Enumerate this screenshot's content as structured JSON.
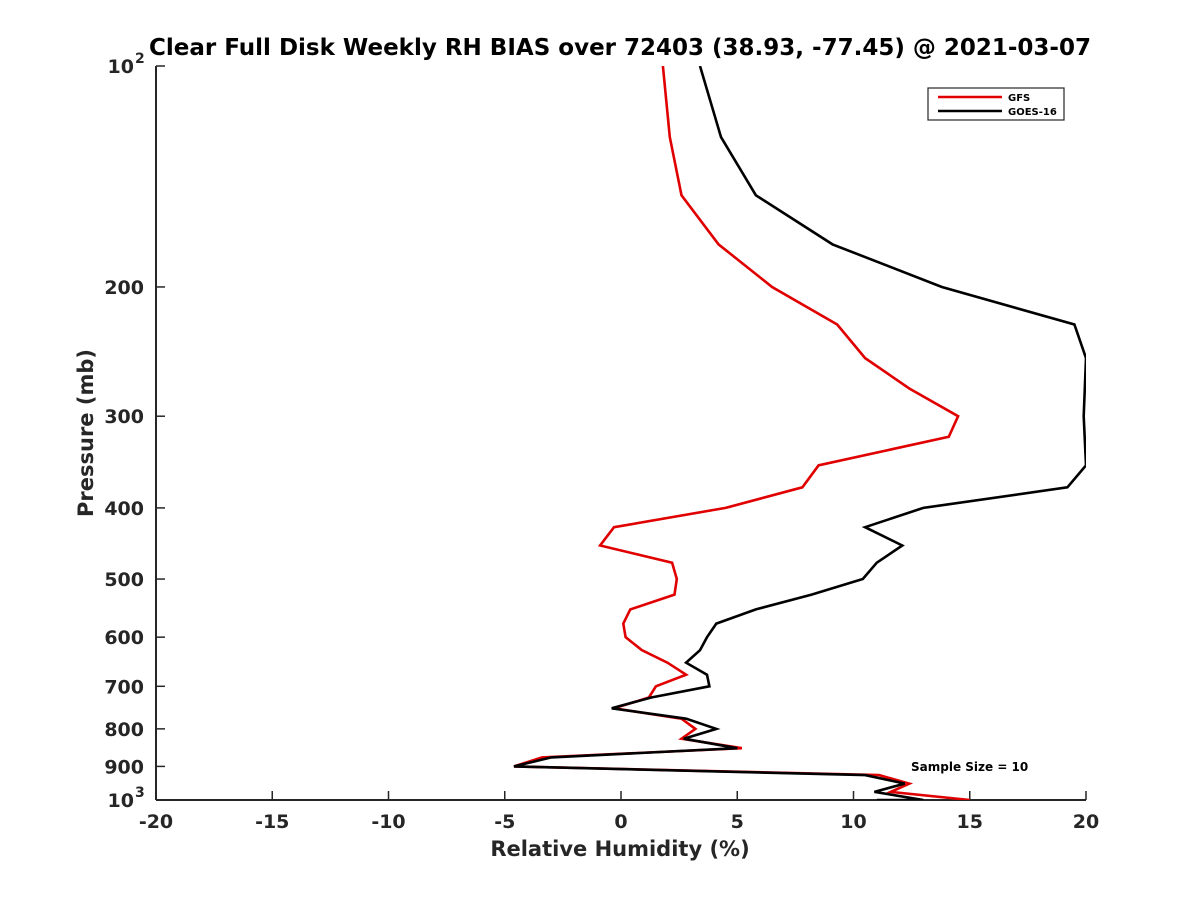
{
  "chart_data": {
    "type": "line",
    "title": "Clear Full Disk Weekly RH BIAS over 72403 (38.93, -77.45) @ 2021-03-07",
    "xlabel": "Relative Humidity (%)",
    "ylabel": "Pressure (mb)",
    "xlim": [
      -20,
      20
    ],
    "ylim": [
      100,
      1000
    ],
    "y_scale": "log",
    "y_reversed": true,
    "x_ticks": [
      "-20",
      "-15",
      "-10",
      "-5",
      "0",
      "5",
      "10",
      "15",
      "20"
    ],
    "y_ticks": [
      {
        "value": 100,
        "base": "10",
        "exp": "2",
        "label": ""
      },
      {
        "value": 200,
        "label": "200"
      },
      {
        "value": 300,
        "label": "300"
      },
      {
        "value": 400,
        "label": "400"
      },
      {
        "value": 500,
        "label": "500"
      },
      {
        "value": 600,
        "label": "600"
      },
      {
        "value": 700,
        "label": "700"
      },
      {
        "value": 800,
        "label": "800"
      },
      {
        "value": 900,
        "label": "900"
      },
      {
        "value": 1000,
        "base": "10",
        "exp": "3",
        "label": ""
      }
    ],
    "grid": false,
    "legend_position": "top-right",
    "annotation": "Sample Size = 10",
    "series": [
      {
        "name": "GFS",
        "color": "#e00000",
        "points": [
          [
            1.8,
            100
          ],
          [
            2.1,
            125
          ],
          [
            2.6,
            150
          ],
          [
            4.2,
            175
          ],
          [
            6.5,
            200
          ],
          [
            9.3,
            225
          ],
          [
            10.5,
            250
          ],
          [
            12.4,
            275
          ],
          [
            14.5,
            300
          ],
          [
            14.1,
            320
          ],
          [
            8.5,
            350
          ],
          [
            7.8,
            375
          ],
          [
            4.5,
            400
          ],
          [
            -0.3,
            425
          ],
          [
            -0.9,
            450
          ],
          [
            2.2,
            475
          ],
          [
            2.4,
            500
          ],
          [
            2.3,
            525
          ],
          [
            0.4,
            550
          ],
          [
            0.1,
            575
          ],
          [
            0.2,
            600
          ],
          [
            0.9,
            625
          ],
          [
            2.0,
            650
          ],
          [
            2.8,
            675
          ],
          [
            1.5,
            700
          ],
          [
            1.2,
            725
          ],
          [
            -0.3,
            750
          ],
          [
            2.6,
            775
          ],
          [
            3.2,
            800
          ],
          [
            2.6,
            825
          ],
          [
            5.2,
            850
          ],
          [
            -3.4,
            875
          ],
          [
            -4.6,
            900
          ],
          [
            11.1,
            925
          ],
          [
            12.4,
            950
          ],
          [
            11.6,
            975
          ],
          [
            15.0,
            1000
          ]
        ]
      },
      {
        "name": "GOES-16",
        "color": "#000000",
        "points": [
          [
            3.4,
            100
          ],
          [
            4.3,
            125
          ],
          [
            5.8,
            150
          ],
          [
            9.1,
            175
          ],
          [
            13.8,
            200
          ],
          [
            19.5,
            225
          ],
          [
            20.0,
            250
          ],
          [
            19.9,
            300
          ],
          [
            20.0,
            350
          ],
          [
            19.2,
            375
          ],
          [
            13.0,
            400
          ],
          [
            10.5,
            425
          ],
          [
            12.1,
            450
          ],
          [
            11.0,
            475
          ],
          [
            10.4,
            500
          ],
          [
            8.2,
            525
          ],
          [
            5.8,
            550
          ],
          [
            4.1,
            575
          ],
          [
            3.7,
            600
          ],
          [
            3.4,
            625
          ],
          [
            2.8,
            650
          ],
          [
            3.7,
            675
          ],
          [
            3.8,
            700
          ],
          [
            1.3,
            725
          ],
          [
            -0.4,
            750
          ],
          [
            2.8,
            775
          ],
          [
            4.1,
            800
          ],
          [
            2.7,
            825
          ],
          [
            5.0,
            850
          ],
          [
            -3.0,
            875
          ],
          [
            -4.6,
            900
          ],
          [
            10.5,
            925
          ],
          [
            12.2,
            950
          ],
          [
            10.9,
            975
          ],
          [
            13.0,
            1000
          ],
          [
            11.0,
            1000
          ]
        ]
      }
    ]
  }
}
